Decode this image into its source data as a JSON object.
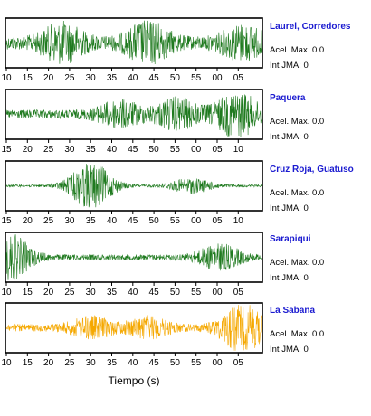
{
  "stations": [
    {
      "name": "Laurel, Corredores",
      "acel_max": "Acel. Max. 0.0",
      "int_jma": "Int JMA: 0",
      "ticks": [
        "10",
        "15",
        "20",
        "25",
        "30",
        "35",
        "40",
        "45",
        "50",
        "55",
        "00",
        "05"
      ],
      "tick_start": 10,
      "color": "#1f7a1f",
      "amplitude": 0.8,
      "burst": [
        [
          2.0,
          0.7
        ],
        [
          5.0,
          0.8
        ],
        [
          8.3,
          0.6
        ]
      ]
    },
    {
      "name": "Paquera",
      "acel_max": "Acel. Max. 0.0",
      "int_jma": "Int JMA: 0",
      "ticks": [
        "15",
        "20",
        "25",
        "30",
        "35",
        "40",
        "45",
        "50",
        "55",
        "00",
        "05",
        "10"
      ],
      "tick_start": 15,
      "color": "#1f7a1f",
      "amplitude": 0.55,
      "burst": [
        [
          4.0,
          0.5
        ],
        [
          6.0,
          0.6
        ],
        [
          8.1,
          0.9
        ]
      ]
    },
    {
      "name": "Cruz Roja, Guatuso",
      "acel_max": "Acel. Max. 0.0",
      "int_jma": "Int JMA: 0",
      "ticks": [
        "15",
        "20",
        "25",
        "30",
        "35",
        "40",
        "45",
        "50",
        "55",
        "00",
        "05",
        "10"
      ],
      "tick_start": 15,
      "color": "#1f7a1f",
      "amplitude": 0.15,
      "burst": [
        [
          3.0,
          1.0
        ],
        [
          6.5,
          0.3
        ]
      ]
    },
    {
      "name": "Sarapiqui",
      "acel_max": "Acel. Max. 0.0",
      "int_jma": "Int JMA: 0",
      "ticks": [
        "10",
        "15",
        "20",
        "25",
        "30",
        "35",
        "40",
        "45",
        "50",
        "55",
        "00",
        "05"
      ],
      "tick_start": 10,
      "color": "#1f7a1f",
      "amplitude": 0.35,
      "burst": [
        [
          0.1,
          1.0
        ],
        [
          7.5,
          0.5
        ]
      ]
    },
    {
      "name": "La Sabana",
      "acel_max": "Acel. Max. 0.0",
      "int_jma": "Int JMA: 0",
      "ticks": [
        "10",
        "15",
        "20",
        "25",
        "30",
        "35",
        "40",
        "45",
        "50",
        "55",
        "00",
        "05"
      ],
      "tick_start": 10,
      "color": "#f5a800",
      "amplitude": 0.45,
      "burst": [
        [
          3.0,
          0.4
        ],
        [
          5.0,
          0.4
        ],
        [
          8.3,
          1.0
        ]
      ]
    }
  ],
  "x_axis_title": "Tiempo (s)"
}
